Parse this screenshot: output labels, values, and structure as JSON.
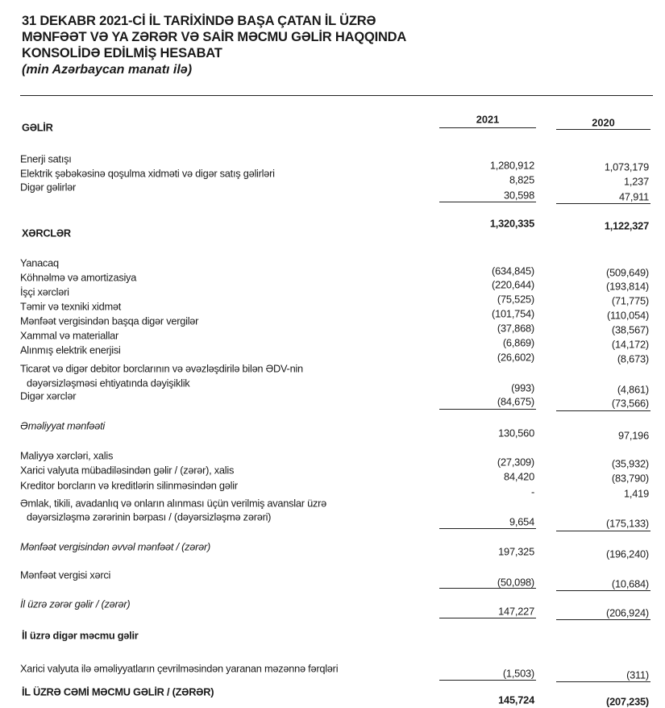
{
  "header": {
    "title_lines": [
      "31 DEKABR 2021-Cİ İL TARİXİNDƏ BAŞA ÇATAN İL ÜZRƏ",
      "MƏNFƏƏT VƏ YA ZƏRƏR VƏ SAİR MƏCMU GƏLİR HAQQINDA",
      "KONSOLİDƏ EDİLMİŞ HESABAT"
    ],
    "subtitle": "(min Azərbaycan manatı ilə)"
  },
  "columns": [
    "2021",
    "2020"
  ],
  "rows": [
    {
      "label": "GƏLİR",
      "v2021": "",
      "v2020": ""
    },
    {
      "label": "Enerji satışı",
      "v2021": "1,280,912",
      "v2020": "1,073,179"
    },
    {
      "label": "Elektrik şəbəkəsinə qoşulma xidməti və digər satış gəlirləri",
      "v2021": "8,825",
      "v2020": "1,237"
    },
    {
      "label": "Digər gəlirlər",
      "v2021": "30,598",
      "v2020": "47,911"
    },
    {
      "label": "XƏRCLƏR",
      "v2021": "1,320,335",
      "v2020": "1,122,327"
    },
    {
      "label": "Yanacaq",
      "v2021": "(634,845)",
      "v2020": "(509,649)"
    },
    {
      "label": "Köhnəlmə və amortizasiya",
      "v2021": "(220,644)",
      "v2020": "(193,814)"
    },
    {
      "label": "İşçi xərcləri",
      "v2021": "(75,525)",
      "v2020": "(71,775)"
    },
    {
      "label": "Təmir və texniki xidmət",
      "v2021": "(101,754)",
      "v2020": "(110,054)"
    },
    {
      "label": "Mənfəət vergisindən başqa digər vergilər",
      "v2021": "(37,868)",
      "v2020": "(38,567)"
    },
    {
      "label": "Xammal və materiallar",
      "v2021": "(6,869)",
      "v2020": "(14,172)"
    },
    {
      "label": "Alınmış elektrik enerjisi",
      "v2021": "(26,602)",
      "v2020": "(8,673)"
    },
    {
      "label": "Ticarət və digər debitor borclarının və əvəzləşdirilə bilən ƏDV-nin",
      "label2": "dəyərsizləşməsi ehtiyatında dəyişiklik",
      "v2021": "(993)",
      "v2020": "(4,861)"
    },
    {
      "label": "Digər xərclər",
      "v2021": "(84,675)",
      "v2020": "(73,566)"
    },
    {
      "label": "Əməliyyat mənfəəti",
      "v2021": "130,560",
      "v2020": "97,196"
    },
    {
      "label": "Maliyyə xərcləri, xalis",
      "v2021": "(27,309)",
      "v2020": "(35,932)"
    },
    {
      "label": "Xarici valyuta mübadiləsindən gəlir / (zərər), xalis",
      "v2021": "84,420",
      "v2020": "(83,790)"
    },
    {
      "label": "Kreditor borcların və kreditlərin silinməsindən gəlir",
      "v2021": "-",
      "v2020": "1,419"
    },
    {
      "label": "Əmlak, tikili, avadanlıq və onların alınması üçün verilmiş avanslar üzrə",
      "label2": "dəyərsizləşmə zərərinin bərpası / (dəyərsizləşmə zərəri)",
      "v2021": "9,654",
      "v2020": "(175,133)"
    },
    {
      "label": "Mənfəət vergisindən əvvəl mənfəət / (zərər)",
      "v2021": "197,325",
      "v2020": "(196,240)"
    },
    {
      "label": "Mənfəət vergisi xərci",
      "v2021": "(50,098)",
      "v2020": "(10,684)"
    },
    {
      "label": "İl üzrə zərər gəlir / (zərər)",
      "v2021": "147,227",
      "v2020": "(206,924)"
    },
    {
      "label": "İl üzrə digər məcmu gəlir",
      "v2021": "",
      "v2020": ""
    },
    {
      "label": "Xarici valyuta ilə əməliyyatların çevrilməsindən yaranan məzənnə fərqləri",
      "v2021": "(1,503)",
      "v2020": "(311)"
    },
    {
      "label": "İL ÜZRƏ CƏMİ MƏCMU GƏLİR / (ZƏRƏR)",
      "v2021": "145,724",
      "v2020": "(207,235)"
    }
  ]
}
